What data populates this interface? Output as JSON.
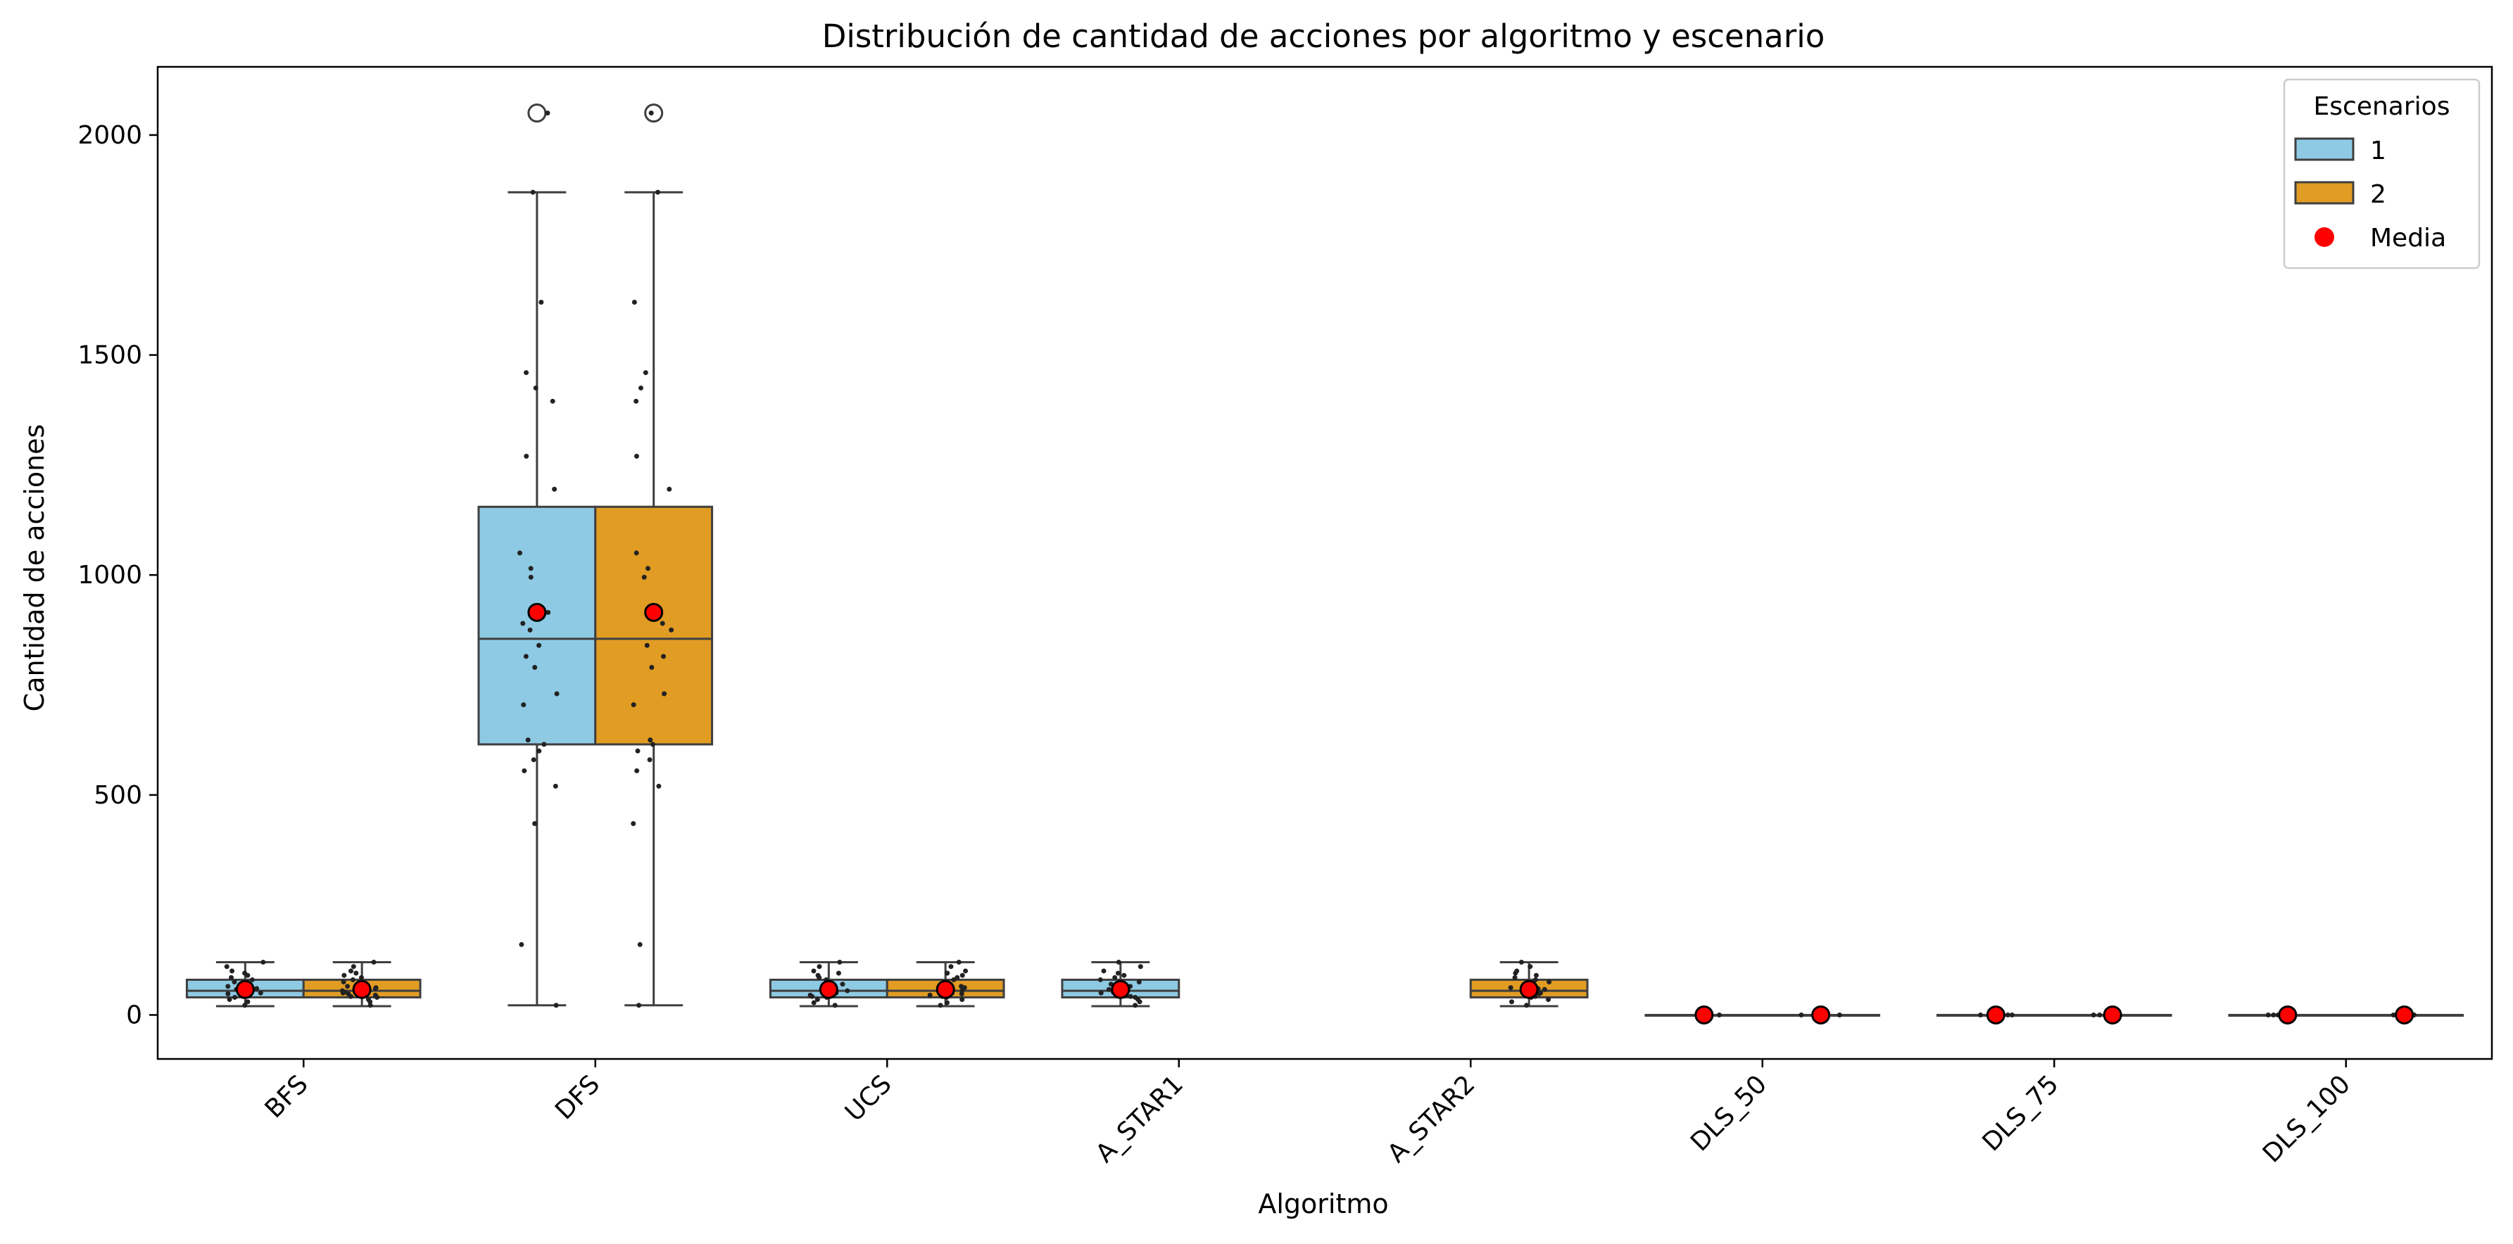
{
  "chart_data": {
    "type": "box",
    "title": "Distribución de cantidad de acciones por algoritmo y escenario",
    "xlabel": "Algoritmo",
    "ylabel": "Cantidad de acciones",
    "ylim": [
      -100,
      2155
    ],
    "yticks": [
      0,
      500,
      1000,
      1500,
      2000
    ],
    "categories": [
      "BFS",
      "DFS",
      "UCS",
      "A_STAR1",
      "A_STAR2",
      "DLS_50",
      "DLS_75",
      "DLS_100"
    ],
    "legend": {
      "title": "Escenarios",
      "placement": "top-right",
      "entries": [
        {
          "label": "1",
          "kind": "box",
          "series": "1"
        },
        {
          "label": "2",
          "kind": "box",
          "series": "2"
        },
        {
          "label": "Media",
          "kind": "mean"
        }
      ]
    },
    "colors": {
      "series_1": "#8ecae3",
      "series_2": "#e19c24",
      "box_edge": "#3f3f3f",
      "mean": "#ff0000",
      "mean_edge": "#000000",
      "jitter": "#222222"
    },
    "series": [
      {
        "name": "1",
        "boxes": [
          {
            "category": "BFS",
            "q1": 40,
            "median": 55,
            "q3": 80,
            "whisker_low": 20,
            "whisker_high": 120,
            "mean": 58,
            "outliers": [],
            "points": [
              22,
              30,
              35,
              40,
              42,
              45,
              48,
              50,
              52,
              55,
              58,
              60,
              62,
              65,
              70,
              75,
              80,
              85,
              90,
              95,
              100,
              110,
              120
            ]
          },
          {
            "category": "DFS",
            "q1": 615,
            "median": 855,
            "q3": 1155,
            "whisker_low": 22,
            "whisker_high": 1870,
            "mean": 915,
            "outliers": [
              2050
            ],
            "points": [
              22,
              160,
              435,
              520,
              555,
              580,
              600,
              615,
              625,
              705,
              730,
              790,
              815,
              840,
              875,
              890,
              915,
              995,
              1015,
              1050,
              1195,
              1270,
              1395,
              1425,
              1460,
              1620,
              1870,
              2050
            ]
          },
          {
            "category": "UCS",
            "q1": 40,
            "median": 55,
            "q3": 80,
            "whisker_low": 20,
            "whisker_high": 120,
            "mean": 58,
            "outliers": [],
            "points": [
              22,
              28,
              35,
              40,
              42,
              45,
              48,
              50,
              52,
              55,
              58,
              60,
              62,
              65,
              70,
              75,
              80,
              85,
              90,
              95,
              100,
              110,
              120
            ]
          },
          {
            "category": "A_STAR1",
            "q1": 40,
            "median": 55,
            "q3": 80,
            "whisker_low": 20,
            "whisker_high": 120,
            "mean": 58,
            "outliers": [],
            "points": [
              22,
              30,
              35,
              40,
              42,
              45,
              48,
              50,
              52,
              55,
              58,
              60,
              62,
              65,
              70,
              75,
              80,
              85,
              90,
              95,
              100,
              110,
              120
            ]
          },
          {
            "category": "DLS_50",
            "q1": 0,
            "median": 0,
            "q3": 0,
            "whisker_low": 0,
            "whisker_high": 0,
            "mean": 0,
            "outliers": [],
            "points": [
              0,
              0,
              0
            ]
          },
          {
            "category": "DLS_75",
            "q1": 0,
            "median": 0,
            "q3": 0,
            "whisker_low": 0,
            "whisker_high": 0,
            "mean": 0,
            "outliers": [],
            "points": [
              0,
              0,
              0
            ]
          },
          {
            "category": "DLS_100",
            "q1": 0,
            "median": 0,
            "q3": 0,
            "whisker_low": 0,
            "whisker_high": 0,
            "mean": 0,
            "outliers": [],
            "points": [
              0,
              0,
              0
            ]
          }
        ]
      },
      {
        "name": "2",
        "boxes": [
          {
            "category": "BFS",
            "q1": 40,
            "median": 55,
            "q3": 80,
            "whisker_low": 20,
            "whisker_high": 120,
            "mean": 58,
            "outliers": [],
            "points": [
              22,
              30,
              35,
              40,
              42,
              45,
              48,
              50,
              52,
              55,
              58,
              60,
              62,
              65,
              70,
              75,
              80,
              85,
              90,
              95,
              100,
              110,
              120
            ]
          },
          {
            "category": "DFS",
            "q1": 615,
            "median": 855,
            "q3": 1155,
            "whisker_low": 22,
            "whisker_high": 1870,
            "mean": 915,
            "outliers": [
              2050
            ],
            "points": [
              22,
              160,
              435,
              520,
              555,
              580,
              600,
              615,
              625,
              705,
              730,
              790,
              815,
              840,
              875,
              890,
              915,
              995,
              1015,
              1050,
              1195,
              1270,
              1395,
              1425,
              1460,
              1620,
              1870,
              2050
            ]
          },
          {
            "category": "UCS",
            "q1": 40,
            "median": 55,
            "q3": 80,
            "whisker_low": 20,
            "whisker_high": 120,
            "mean": 58,
            "outliers": [],
            "points": [
              22,
              28,
              35,
              40,
              42,
              45,
              48,
              50,
              52,
              55,
              58,
              60,
              62,
              65,
              70,
              75,
              80,
              85,
              90,
              95,
              100,
              110,
              120
            ]
          },
          {
            "category": "A_STAR2",
            "q1": 40,
            "median": 55,
            "q3": 80,
            "whisker_low": 20,
            "whisker_high": 120,
            "mean": 58,
            "outliers": [],
            "points": [
              22,
              30,
              35,
              40,
              42,
              45,
              48,
              50,
              52,
              55,
              58,
              60,
              62,
              65,
              70,
              75,
              80,
              85,
              90,
              95,
              100,
              110,
              120
            ]
          },
          {
            "category": "DLS_50",
            "q1": 0,
            "median": 0,
            "q3": 0,
            "whisker_low": 0,
            "whisker_high": 0,
            "mean": 0,
            "outliers": [],
            "points": [
              0,
              0,
              0
            ]
          },
          {
            "category": "DLS_75",
            "q1": 0,
            "median": 0,
            "q3": 0,
            "whisker_low": 0,
            "whisker_high": 0,
            "mean": 0,
            "outliers": [],
            "points": [
              0,
              0,
              0
            ]
          },
          {
            "category": "DLS_100",
            "q1": 0,
            "median": 0,
            "q3": 0,
            "whisker_low": 0,
            "whisker_high": 0,
            "mean": 0,
            "outliers": [],
            "points": [
              0,
              0,
              0
            ]
          }
        ]
      }
    ]
  }
}
